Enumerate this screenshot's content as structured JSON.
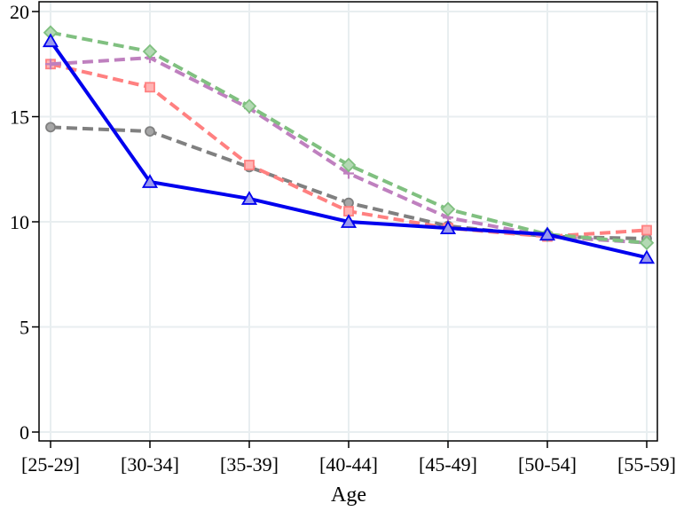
{
  "chart_data": {
    "type": "line",
    "xlabel": "Age",
    "ylabel": "",
    "categories": [
      "[25-29]",
      "[30-34]",
      "[35-39]",
      "[40-44]",
      "[45-49]",
      "[50-54]",
      "[55-59]"
    ],
    "ylim": [
      0,
      20
    ],
    "yticks": [
      0,
      5,
      10,
      15,
      20
    ],
    "grid": true,
    "legend": "none",
    "series": [
      {
        "values": [
          14.5,
          14.3,
          12.6,
          10.9,
          9.8,
          9.3,
          9.2
        ],
        "color": "#808080",
        "fill": "#a6a6a6",
        "marker": "circle",
        "dash": true
      },
      {
        "values": [
          17.5,
          16.4,
          12.7,
          10.5,
          9.7,
          9.3,
          9.6
        ],
        "color": "#ff8080",
        "fill": "#ffb3b3",
        "marker": "square",
        "dash": true
      },
      {
        "values": [
          17.5,
          17.8,
          15.4,
          12.3,
          10.2,
          9.3,
          9.0
        ],
        "color": "#bf80bf",
        "fill": "#d9b3d9",
        "marker": "plus",
        "dash": true
      },
      {
        "values": [
          19.0,
          18.1,
          15.5,
          12.7,
          10.6,
          9.4,
          9.0
        ],
        "color": "#80c080",
        "fill": "#b3d9b3",
        "marker": "diamond",
        "dash": true
      },
      {
        "values": [
          18.6,
          11.9,
          11.1,
          10.0,
          9.7,
          9.4,
          8.3
        ],
        "color": "#0000ee",
        "fill": "#9999ee",
        "marker": "triangle",
        "dash": false
      }
    ]
  }
}
